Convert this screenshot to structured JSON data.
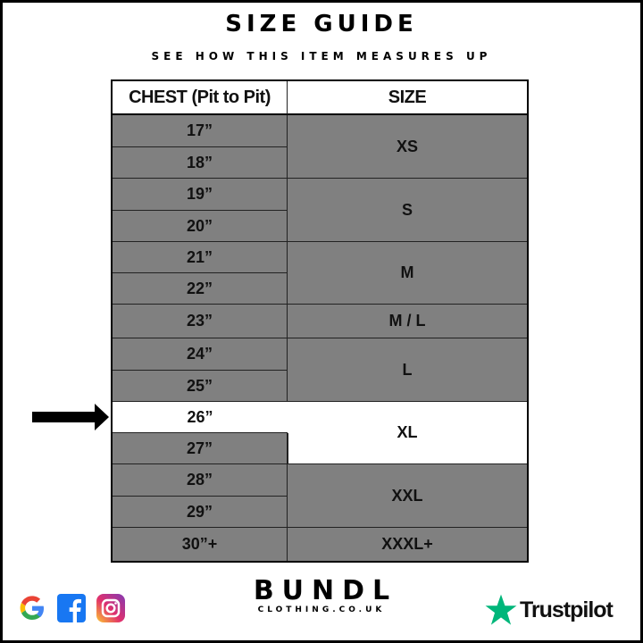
{
  "title": "SIZE GUIDE",
  "subtitle": "SEE HOW THIS ITEM MEASURES UP",
  "table": {
    "headers": [
      "CHEST (Pit to Pit)",
      "SIZE"
    ],
    "chest": [
      "17”",
      "18”",
      "19”",
      "20”",
      "21”",
      "22”",
      "23”",
      "24”",
      "25”",
      "26”",
      "27”",
      "28”",
      "29”",
      "30”+"
    ],
    "sizes": [
      "XS",
      "S",
      "M",
      "M / L",
      "L",
      "XL",
      "XXL",
      "XXXL+"
    ],
    "highlighted_chest": "26”",
    "highlighted_size": "XL"
  },
  "footer": {
    "brand": "BUNDL",
    "brand_sub": "CLOTHING.CO.UK",
    "social_icons": [
      "google-icon",
      "facebook-icon",
      "instagram-icon"
    ],
    "trustpilot": "Trustpilot"
  },
  "colors": {
    "row_fill": "#808080",
    "highlight": "#ffffff",
    "trustpilot": "#00b67a",
    "facebook": "#1877f2"
  }
}
